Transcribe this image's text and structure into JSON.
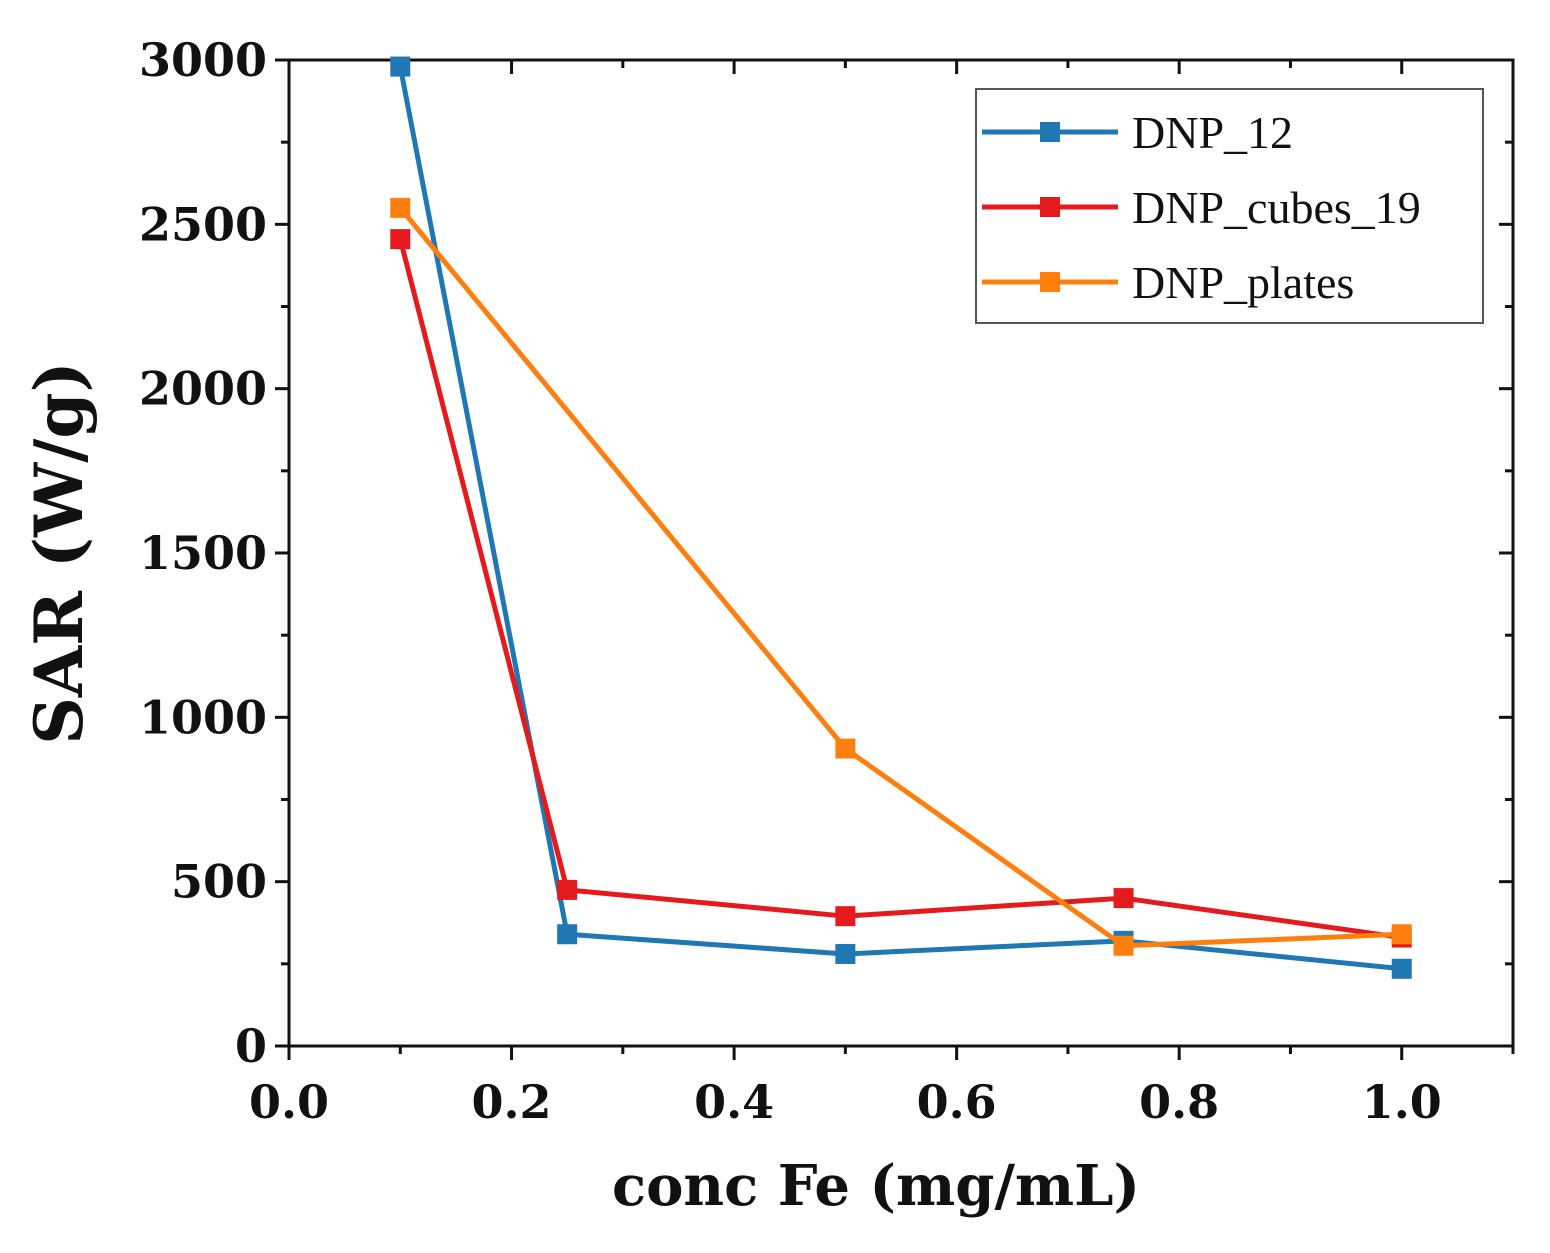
{
  "chart_data": {
    "type": "line",
    "title": "",
    "xlabel": "conc Fe (mg/mL)",
    "ylabel": "SAR (W/g)",
    "xlim": [
      0.0,
      1.1
    ],
    "ylim": [
      0,
      3000
    ],
    "xticks": [
      "0.0",
      "0.2",
      "0.4",
      "0.6",
      "0.8",
      "1.0"
    ],
    "yticks": [
      "0",
      "500",
      "1000",
      "1500",
      "2000",
      "2500",
      "3000"
    ],
    "grid": false,
    "legend_position": "top-right",
    "x": [
      0.1,
      0.25,
      0.5,
      0.75,
      1.0
    ],
    "series": [
      {
        "name": "DNP_12",
        "color": "#1f77b4",
        "marker": "square",
        "values": [
          2980,
          340,
          280,
          320,
          235
        ]
      },
      {
        "name": "DNP_cubes_19",
        "color": "#e41a1c",
        "marker": "square",
        "values": [
          2455,
          475,
          395,
          450,
          330
        ]
      },
      {
        "name": "DNP_plates",
        "color": "#ff7f0e",
        "marker": "square",
        "values": [
          2550,
          null,
          905,
          305,
          340
        ]
      }
    ]
  }
}
